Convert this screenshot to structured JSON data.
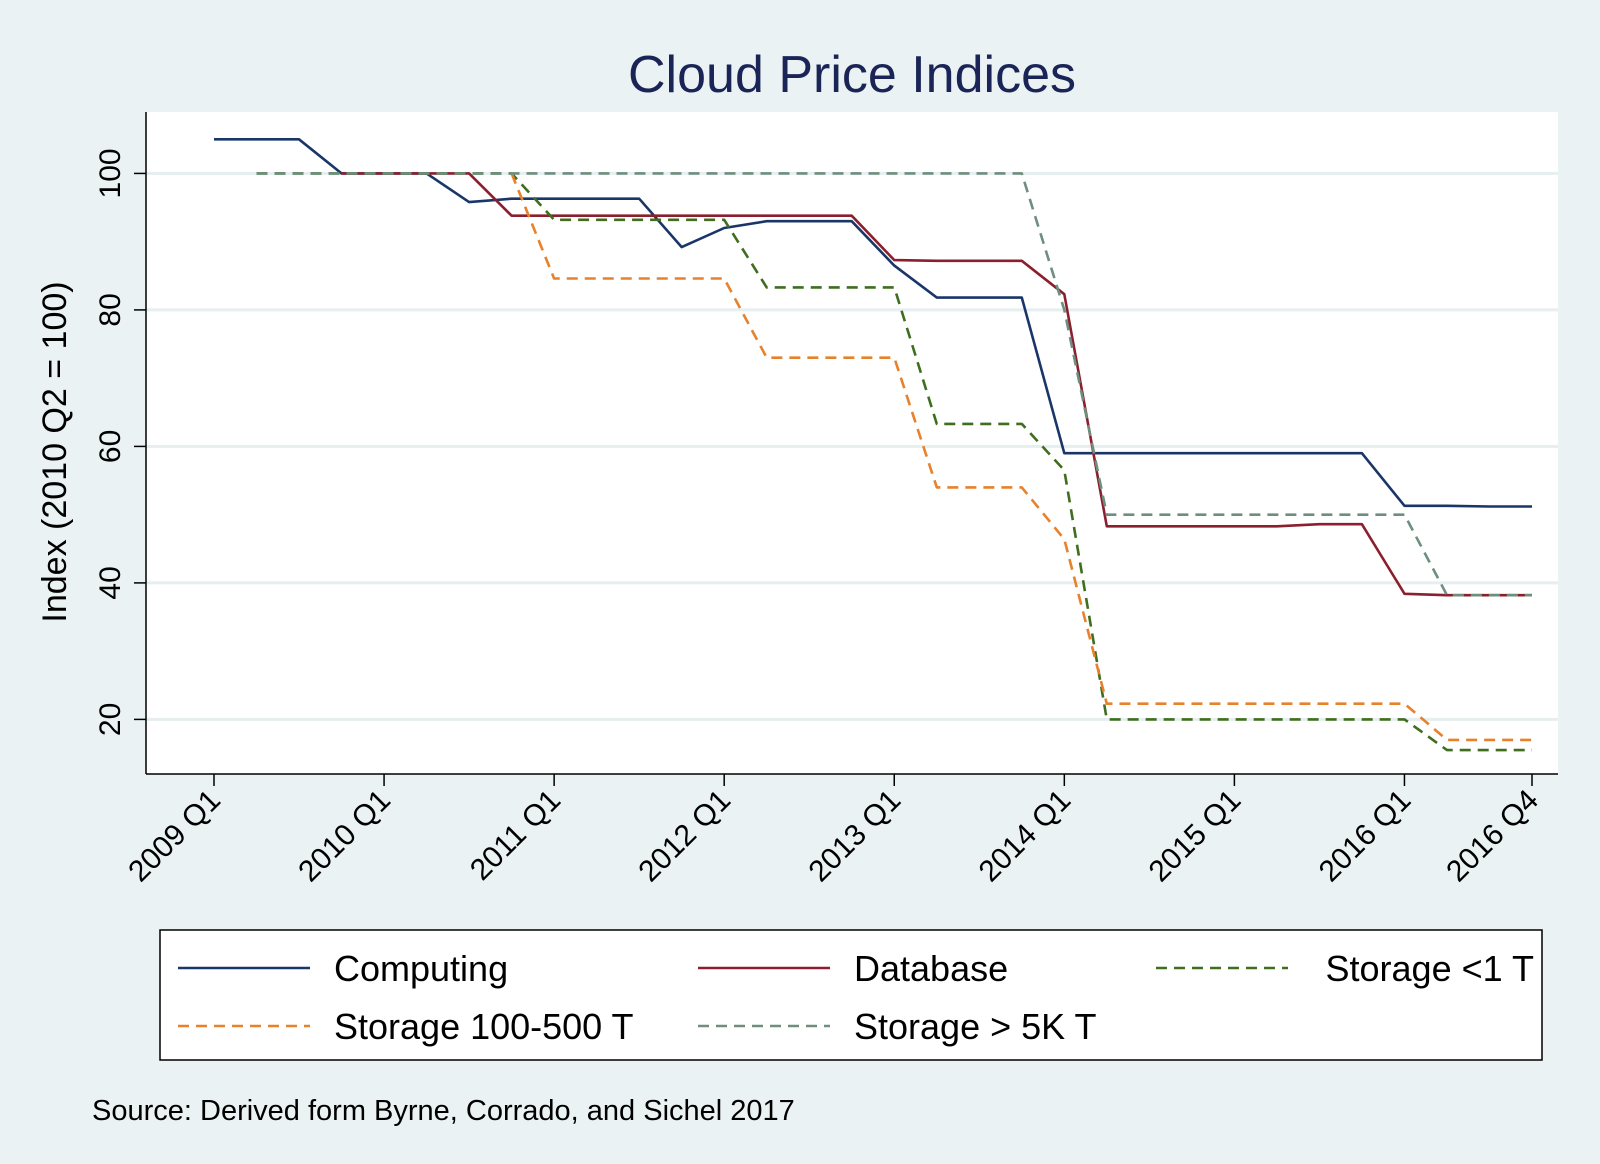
{
  "chart_data": {
    "type": "line",
    "title": "Cloud Price Indices",
    "xlabel": "",
    "ylabel": "Index (2010 Q2 = 100)",
    "source": "Source: Derived form Byrne, Corrado, and Sichel 2017",
    "x_range": [
      0,
      31
    ],
    "ylim": [
      12,
      109
    ],
    "x_ticks": [
      {
        "x": 0,
        "label": "2009 Q1"
      },
      {
        "x": 4,
        "label": "2010 Q1"
      },
      {
        "x": 8,
        "label": "2011 Q1"
      },
      {
        "x": 12,
        "label": "2012 Q1"
      },
      {
        "x": 16,
        "label": "2013 Q1"
      },
      {
        "x": 20,
        "label": "2014 Q1"
      },
      {
        "x": 24,
        "label": "2015 Q1"
      },
      {
        "x": 28,
        "label": "2016 Q1"
      },
      {
        "x": 31,
        "label": "2016 Q4"
      }
    ],
    "y_ticks": [
      20,
      40,
      60,
      80,
      100
    ],
    "legend_columns": 3,
    "series": [
      {
        "name": "Computing",
        "color": "#1a3668",
        "dash": "solid",
        "points": [
          [
            0,
            105
          ],
          [
            1,
            105
          ],
          [
            2,
            105
          ],
          [
            3,
            100
          ],
          [
            4,
            100
          ],
          [
            5,
            100
          ],
          [
            6,
            95.8
          ],
          [
            7,
            96.3
          ],
          [
            8,
            96.3
          ],
          [
            9,
            96.3
          ],
          [
            10,
            96.3
          ],
          [
            11,
            89.2
          ],
          [
            12,
            92
          ],
          [
            13,
            93
          ],
          [
            14,
            93
          ],
          [
            15,
            93
          ],
          [
            16,
            86.5
          ],
          [
            17,
            81.8
          ],
          [
            18,
            81.8
          ],
          [
            19,
            81.8
          ],
          [
            20,
            59
          ],
          [
            21,
            59
          ],
          [
            22,
            59
          ],
          [
            23,
            59
          ],
          [
            24,
            59
          ],
          [
            25,
            59
          ],
          [
            26,
            59
          ],
          [
            27,
            59
          ],
          [
            28,
            51.3
          ],
          [
            29,
            51.3
          ],
          [
            30,
            51.2
          ],
          [
            31,
            51.2
          ]
        ]
      },
      {
        "name": "Database",
        "color": "#8b1f2e",
        "dash": "solid",
        "points": [
          [
            3,
            100
          ],
          [
            4,
            100
          ],
          [
            5,
            100
          ],
          [
            6,
            100
          ],
          [
            7,
            93.8
          ],
          [
            8,
            93.8
          ],
          [
            9,
            93.8
          ],
          [
            10,
            93.8
          ],
          [
            11,
            93.8
          ],
          [
            12,
            93.8
          ],
          [
            13,
            93.8
          ],
          [
            14,
            93.8
          ],
          [
            15,
            93.8
          ],
          [
            16,
            87.3
          ],
          [
            17,
            87.2
          ],
          [
            18,
            87.2
          ],
          [
            19,
            87.2
          ],
          [
            20,
            82.3
          ],
          [
            21,
            48.3
          ],
          [
            22,
            48.3
          ],
          [
            23,
            48.3
          ],
          [
            24,
            48.3
          ],
          [
            25,
            48.3
          ],
          [
            26,
            48.6
          ],
          [
            27,
            48.6
          ],
          [
            28,
            38.4
          ],
          [
            29,
            38.2
          ],
          [
            30,
            38.2
          ],
          [
            31,
            38.2
          ]
        ]
      },
      {
        "name": "Storage <1 T",
        "color": "#3f6e1e",
        "dash": "dashed",
        "points": [
          [
            1,
            100
          ],
          [
            2,
            100
          ],
          [
            3,
            100
          ],
          [
            4,
            100
          ],
          [
            5,
            100
          ],
          [
            6,
            100
          ],
          [
            7,
            100
          ],
          [
            8,
            93.2
          ],
          [
            9,
            93.2
          ],
          [
            10,
            93.2
          ],
          [
            11,
            93.2
          ],
          [
            12,
            93.2
          ],
          [
            13,
            83.3
          ],
          [
            14,
            83.3
          ],
          [
            15,
            83.3
          ],
          [
            16,
            83.3
          ],
          [
            17,
            63.3
          ],
          [
            18,
            63.3
          ],
          [
            19,
            63.3
          ],
          [
            20,
            56.5
          ],
          [
            21,
            20
          ],
          [
            22,
            20
          ],
          [
            23,
            20
          ],
          [
            24,
            20
          ],
          [
            25,
            20
          ],
          [
            26,
            20
          ],
          [
            27,
            20
          ],
          [
            28,
            20
          ],
          [
            29,
            15.5
          ],
          [
            30,
            15.5
          ],
          [
            31,
            15.5
          ]
        ]
      },
      {
        "name": "Storage 100-500 T",
        "color": "#e8812c",
        "dash": "dashed",
        "points": [
          [
            7,
            100
          ],
          [
            8,
            84.6
          ],
          [
            9,
            84.6
          ],
          [
            10,
            84.6
          ],
          [
            11,
            84.6
          ],
          [
            12,
            84.6
          ],
          [
            13,
            73
          ],
          [
            14,
            73
          ],
          [
            15,
            73
          ],
          [
            16,
            73
          ],
          [
            17,
            54
          ],
          [
            18,
            54
          ],
          [
            19,
            54
          ],
          [
            20,
            46.4
          ],
          [
            21,
            22.3
          ],
          [
            22,
            22.3
          ],
          [
            23,
            22.3
          ],
          [
            24,
            22.3
          ],
          [
            25,
            22.3
          ],
          [
            26,
            22.3
          ],
          [
            27,
            22.3
          ],
          [
            28,
            22.3
          ],
          [
            29,
            17
          ],
          [
            30,
            17
          ],
          [
            31,
            17
          ]
        ]
      },
      {
        "name": "Storage > 5K T",
        "color": "#6e8f7e",
        "dash": "dashed",
        "points": [
          [
            1,
            100
          ],
          [
            2,
            100
          ],
          [
            3,
            100
          ],
          [
            4,
            100
          ],
          [
            5,
            100
          ],
          [
            6,
            100
          ],
          [
            7,
            100
          ],
          [
            8,
            100
          ],
          [
            9,
            100
          ],
          [
            10,
            100
          ],
          [
            11,
            100
          ],
          [
            12,
            100
          ],
          [
            13,
            100
          ],
          [
            14,
            100
          ],
          [
            15,
            100
          ],
          [
            16,
            100
          ],
          [
            17,
            100
          ],
          [
            18,
            100
          ],
          [
            19,
            100
          ],
          [
            20,
            80
          ],
          [
            21,
            50
          ],
          [
            22,
            50
          ],
          [
            23,
            50
          ],
          [
            24,
            50
          ],
          [
            25,
            50
          ],
          [
            26,
            50
          ],
          [
            27,
            50
          ],
          [
            28,
            50
          ],
          [
            29,
            38.2
          ],
          [
            30,
            38.2
          ],
          [
            31,
            38.2
          ]
        ]
      }
    ]
  }
}
